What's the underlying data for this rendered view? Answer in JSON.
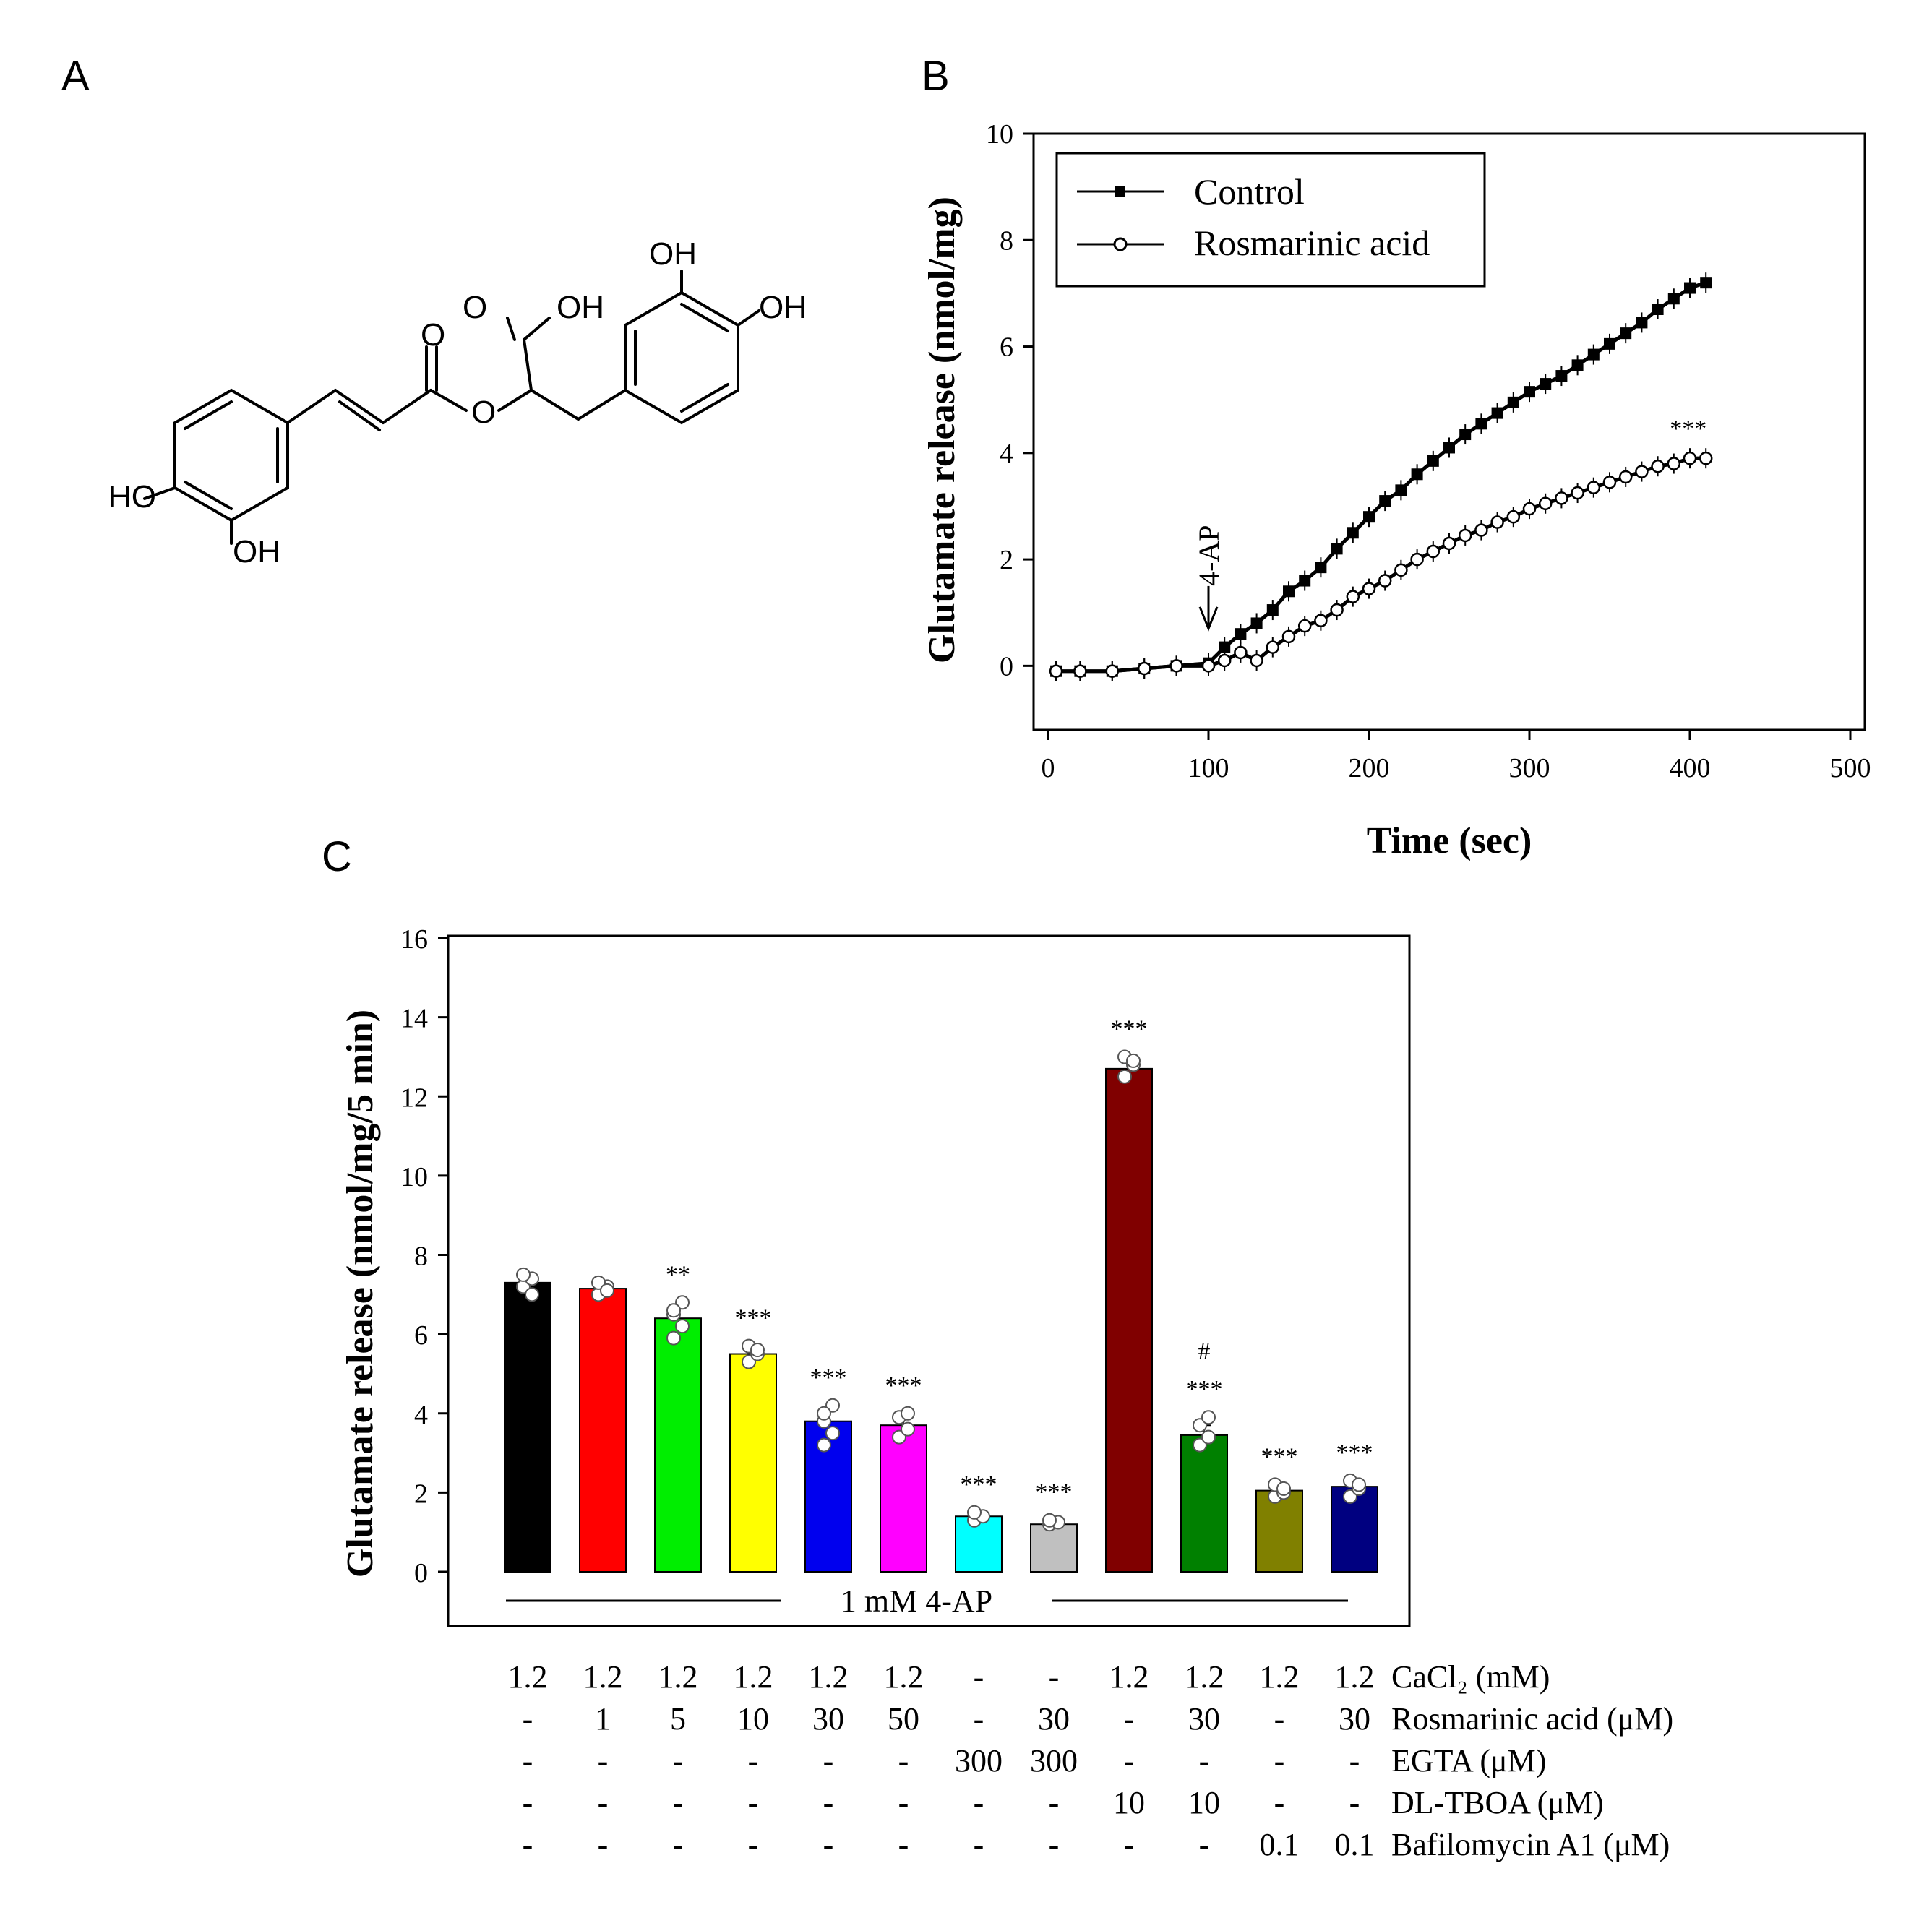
{
  "panels": {
    "a": "A",
    "b": "B",
    "c": "C"
  },
  "molecule": {
    "labels": [
      "OH",
      "O",
      "OH",
      "OH",
      "O",
      "O",
      "HO",
      "OH"
    ]
  },
  "chart_data": [
    {
      "id": "B",
      "type": "line",
      "title": "",
      "xlabel": "Time (sec)",
      "ylabel": "Glutamate release (nmol/mg)",
      "xlim": [
        0,
        500
      ],
      "ylim": [
        -1,
        10
      ],
      "xticks": [
        0,
        100,
        200,
        300,
        400,
        500
      ],
      "yticks": [
        0,
        2,
        4,
        6,
        8,
        10
      ],
      "annotation": "4-AP",
      "annotation_x": 100,
      "significance": "***",
      "legend": [
        "Control",
        "Rosmarinic acid"
      ],
      "series": [
        {
          "name": "Control",
          "marker": "filled",
          "x": [
            5,
            20,
            40,
            60,
            80,
            100,
            110,
            120,
            130,
            140,
            150,
            160,
            170,
            180,
            190,
            200,
            210,
            220,
            230,
            240,
            250,
            260,
            270,
            280,
            290,
            300,
            310,
            320,
            330,
            340,
            350,
            360,
            370,
            380,
            390,
            400,
            410
          ],
          "y": [
            -0.1,
            -0.1,
            -0.1,
            -0.05,
            0.0,
            0.05,
            0.35,
            0.6,
            0.8,
            1.05,
            1.4,
            1.6,
            1.85,
            2.2,
            2.5,
            2.8,
            3.1,
            3.3,
            3.6,
            3.85,
            4.1,
            4.35,
            4.55,
            4.75,
            4.95,
            5.15,
            5.3,
            5.45,
            5.65,
            5.85,
            6.05,
            6.25,
            6.45,
            6.7,
            6.9,
            7.1,
            7.2
          ]
        },
        {
          "name": "Rosmarinic acid",
          "marker": "open",
          "x": [
            5,
            20,
            40,
            60,
            80,
            100,
            110,
            120,
            130,
            140,
            150,
            160,
            170,
            180,
            190,
            200,
            210,
            220,
            230,
            240,
            250,
            260,
            270,
            280,
            290,
            300,
            310,
            320,
            330,
            340,
            350,
            360,
            370,
            380,
            390,
            400,
            410
          ],
          "y": [
            -0.1,
            -0.1,
            -0.1,
            -0.05,
            0.0,
            0.0,
            0.1,
            0.25,
            0.1,
            0.35,
            0.55,
            0.75,
            0.85,
            1.05,
            1.3,
            1.45,
            1.6,
            1.8,
            2.0,
            2.15,
            2.3,
            2.45,
            2.55,
            2.7,
            2.8,
            2.95,
            3.05,
            3.15,
            3.25,
            3.35,
            3.45,
            3.55,
            3.65,
            3.75,
            3.8,
            3.9,
            3.9
          ]
        }
      ]
    },
    {
      "id": "C",
      "type": "bar",
      "title": "",
      "xlabel": "",
      "ylabel": "Glutamate release (nmol/mg/5 min)",
      "ylim": [
        0,
        16
      ],
      "yticks": [
        0,
        2,
        4,
        6,
        8,
        10,
        12,
        14,
        16
      ],
      "treatment_label": "1 mM 4-AP",
      "bars": [
        {
          "value": 7.3,
          "error": 0.2,
          "color": "#000000",
          "sig": "",
          "sig2": "",
          "points": [
            7.2,
            7.4,
            7.5,
            7.0
          ]
        },
        {
          "value": 7.15,
          "error": 0.15,
          "color": "#ff0000",
          "sig": "",
          "sig2": "",
          "points": [
            7.0,
            7.2,
            7.3,
            7.1
          ]
        },
        {
          "value": 6.4,
          "error": 0.3,
          "color": "#00ee00",
          "sig": "**",
          "sig2": "",
          "points": [
            5.9,
            6.2,
            6.5,
            6.8,
            6.6
          ]
        },
        {
          "value": 5.5,
          "error": 0.2,
          "color": "#ffff00",
          "sig": "***",
          "sig2": "",
          "points": [
            5.3,
            5.5,
            5.7,
            5.6
          ]
        },
        {
          "value": 3.8,
          "error": 0.3,
          "color": "#0000ee",
          "sig": "***",
          "sig2": "",
          "points": [
            3.2,
            3.5,
            3.8,
            4.2,
            4.0
          ]
        },
        {
          "value": 3.7,
          "error": 0.2,
          "color": "#ff00ff",
          "sig": "***",
          "sig2": "",
          "points": [
            3.4,
            3.6,
            3.9,
            4.0
          ]
        },
        {
          "value": 1.4,
          "error": 0.1,
          "color": "#00ffff",
          "sig": "***",
          "sig2": "",
          "points": [
            1.3,
            1.4,
            1.5
          ]
        },
        {
          "value": 1.2,
          "error": 0.05,
          "color": "#c0c0c0",
          "sig": "***",
          "sig2": "",
          "points": [
            1.2,
            1.25,
            1.3
          ]
        },
        {
          "value": 12.7,
          "error": 0.25,
          "color": "#800000",
          "sig": "***",
          "sig2": "",
          "points": [
            12.5,
            12.8,
            13.0,
            12.9
          ]
        },
        {
          "value": 3.45,
          "error": 0.25,
          "color": "#008000",
          "sig": "***",
          "sig2": "#",
          "points": [
            3.2,
            3.4,
            3.7,
            3.9
          ]
        },
        {
          "value": 2.05,
          "error": 0.15,
          "color": "#808000",
          "sig": "***",
          "sig2": "",
          "points": [
            1.9,
            2.0,
            2.2,
            2.1
          ]
        },
        {
          "value": 2.15,
          "error": 0.15,
          "color": "#000080",
          "sig": "***",
          "sig2": "",
          "points": [
            1.9,
            2.1,
            2.3,
            2.2
          ]
        }
      ],
      "table": {
        "row_labels": [
          "CaCl₂ (mM)",
          "Rosmarinic acid (μM)",
          "EGTA (μM)",
          "DL-TBOA (μM)",
          "Bafilomycin A1 (μM)"
        ],
        "rows": [
          [
            "1.2",
            "1.2",
            "1.2",
            "1.2",
            "1.2",
            "1.2",
            "-",
            "-",
            "1.2",
            "1.2",
            "1.2",
            "1.2"
          ],
          [
            "-",
            "1",
            "5",
            "10",
            "30",
            "50",
            "-",
            "30",
            "-",
            "30",
            "-",
            "30"
          ],
          [
            "-",
            "-",
            "-",
            "-",
            "-",
            "-",
            "300",
            "300",
            "-",
            "-",
            "-",
            "-"
          ],
          [
            "-",
            "-",
            "-",
            "-",
            "-",
            "-",
            "-",
            "-",
            "10",
            "10",
            "-",
            "-"
          ],
          [
            "-",
            "-",
            "-",
            "-",
            "-",
            "-",
            "-",
            "-",
            "-",
            "-",
            "0.1",
            "0.1"
          ]
        ]
      }
    }
  ]
}
